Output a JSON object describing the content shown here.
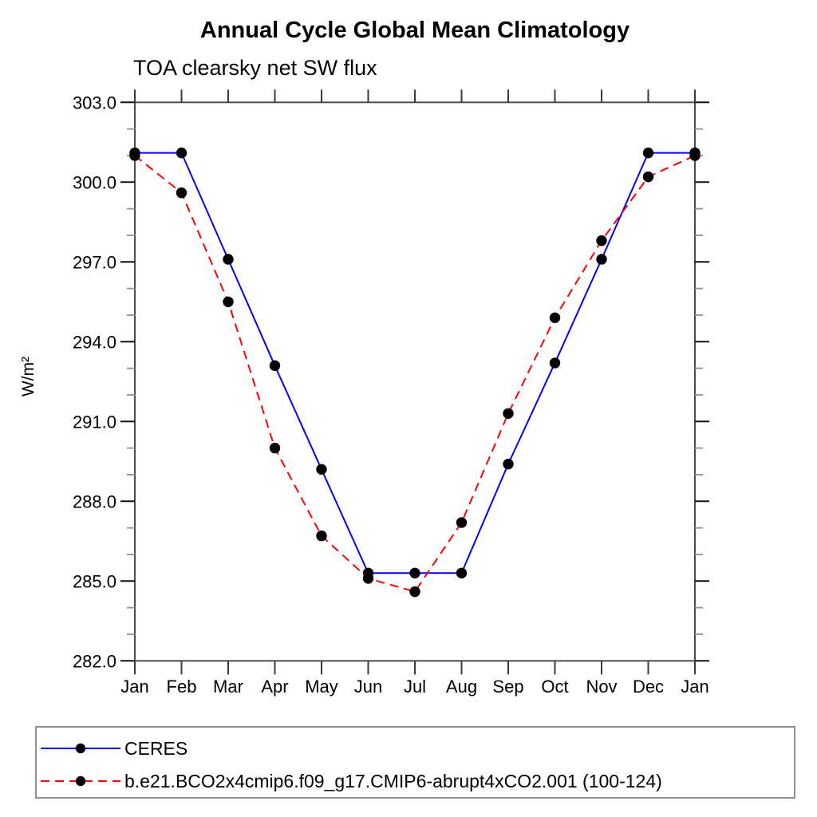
{
  "title": "Annual Cycle Global Mean Climatology",
  "subtitle": "TOA clearsky net SW flux",
  "chart_data": {
    "type": "line",
    "title": "Annual Cycle Global Mean Climatology",
    "subtitle": "TOA clearsky net SW flux",
    "xlabel": "",
    "ylabel": "W/m²",
    "categories": [
      "Jan",
      "Feb",
      "Mar",
      "Apr",
      "May",
      "Jun",
      "Jul",
      "Aug",
      "Sep",
      "Oct",
      "Nov",
      "Dec",
      "Jan"
    ],
    "ylim": [
      282.0,
      303.0
    ],
    "ytick_major": 3.0,
    "ytick_minor": 1.0,
    "ytick_labels": [
      "303.0",
      "300.0",
      "297.0",
      "294.0",
      "291.0",
      "288.0",
      "285.0",
      "282.0"
    ],
    "grid": false,
    "legend_position": "bottom-left-box",
    "series": [
      {
        "name": "CERES",
        "color": "#0000ff",
        "style": "solid",
        "marker": "circle",
        "marker_color": "#000000",
        "values": [
          301.1,
          301.1,
          297.1,
          293.1,
          289.2,
          285.3,
          285.3,
          285.3,
          289.4,
          293.2,
          297.1,
          301.1,
          301.1
        ]
      },
      {
        "name": "b.e21.BCO2x4cmip6.f09_g17.CMIP6-abrupt4xCO2.001 (100-124)",
        "color": "#ff0000",
        "style": "dashed",
        "marker": "circle",
        "marker_color": "#000000",
        "values": [
          301.0,
          299.6,
          295.5,
          290.0,
          286.7,
          285.1,
          284.6,
          287.2,
          291.3,
          294.9,
          297.8,
          300.2,
          301.0
        ]
      }
    ]
  }
}
